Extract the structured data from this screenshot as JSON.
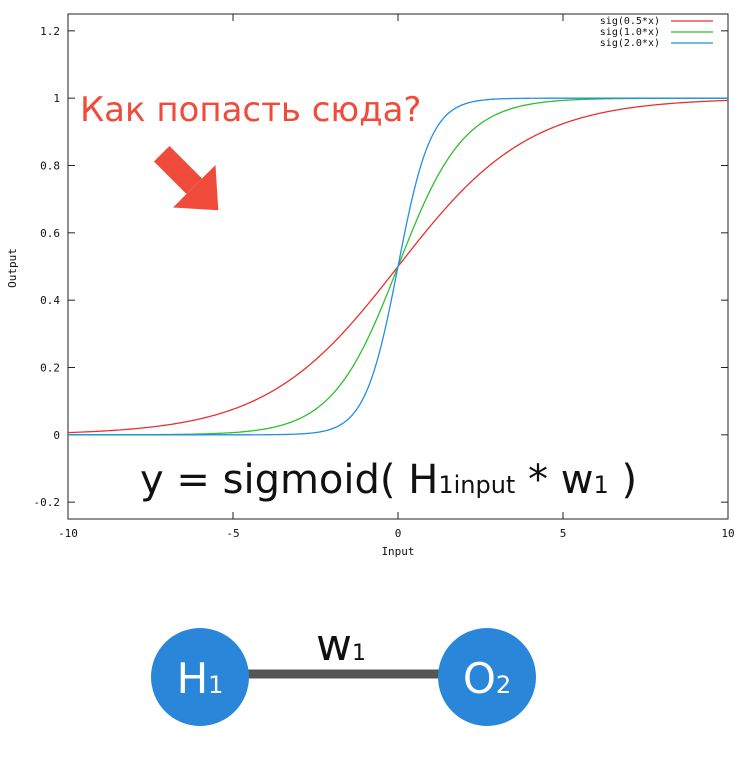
{
  "chart_data": {
    "type": "line",
    "title": "",
    "xlabel": "Input",
    "ylabel": "Output",
    "xlim": [
      -10,
      10
    ],
    "ylim": [
      -0.25,
      1.25
    ],
    "xticks": [
      -10,
      -5,
      0,
      5,
      10
    ],
    "yticks": [
      -0.2,
      0,
      0.2,
      0.4,
      0.6,
      0.8,
      1,
      1.2
    ],
    "ytick_labels": [
      "-0.2",
      "0",
      "0.2",
      "0.4",
      "0.6",
      "0.8",
      "1",
      "1.2"
    ],
    "xtick_labels": [
      "-10",
      "-5",
      "0",
      "5",
      "10"
    ],
    "grid": false,
    "legend_position": "top-right",
    "series": [
      {
        "name": "sig(0.5*x)",
        "k": 0.5,
        "color": "#e8312f"
      },
      {
        "name": "sig(1.0*x)",
        "k": 1.0,
        "color": "#2fbf2f"
      },
      {
        "name": "sig(2.0*x)",
        "k": 2.0,
        "color": "#1f8fe8"
      }
    ],
    "annotations": {
      "question": "Как попасть сюда?",
      "question_color": "#f04a3a",
      "formula_prefix": "y = sigmoid( H",
      "formula_sub_1": "1input",
      "formula_mid": " * w",
      "formula_sub_2": "1",
      "formula_suffix": " )"
    }
  },
  "network": {
    "node_color": "#2a86d8",
    "edge_color": "#555555",
    "left_node": {
      "label": "H",
      "sub": "1"
    },
    "right_node": {
      "label": "O",
      "sub": "2"
    },
    "edge_label": {
      "label": "w",
      "sub": "1"
    }
  }
}
